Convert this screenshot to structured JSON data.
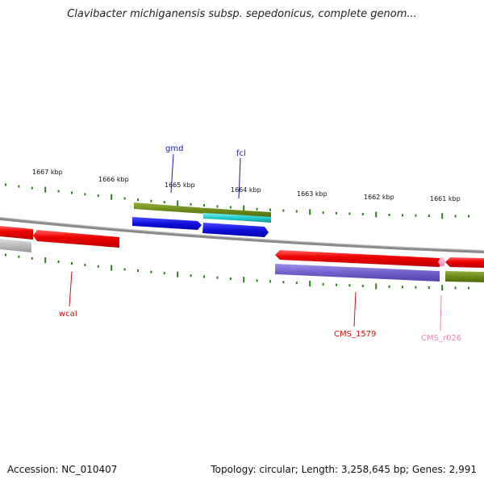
{
  "title": "Clavibacter michiganensis subsp. sepedonicus, complete genom...",
  "accession": "Accession: NC_010407",
  "topology": "Topology: circular; Length: 3,258,645 bp; Genes: 2,991",
  "colors": {
    "backbone": "#8a8a8a",
    "tick": "#2e7d1e",
    "tick_label": "#111111",
    "red_gene": "#ee1111",
    "olive_gene": "#6b8a1a",
    "cyan_gene": "#22cccc",
    "blue_gene": "#1111dd",
    "purple_gene": "#7060cc",
    "grey_gene": "#bbbbbb",
    "pink_gene": "#ee88bb",
    "label_blue": "#1a1aaa",
    "label_red": "#cc1111",
    "label_pink": "#ee88bb"
  },
  "scale": {
    "unit": "kbp",
    "labels": [
      "1667 kbp",
      "1666 kbp",
      "1665 kbp",
      "1664 kbp",
      "1663 kbp",
      "1662 kbp",
      "1661 kbp"
    ]
  },
  "genes": [
    {
      "name": "gmd",
      "color": "blue_gene",
      "strand": "+",
      "label_color": "label_blue"
    },
    {
      "name": "fcl",
      "color": "blue_gene",
      "strand": "+",
      "label_color": "label_blue"
    },
    {
      "name": "wcaI",
      "color": "red_gene",
      "strand": "-",
      "label_color": "label_red"
    },
    {
      "name": "CMS_1579",
      "color": "red_gene",
      "strand": "-",
      "label_color": "label_red"
    },
    {
      "name": "CMS_r026",
      "color": "pink_gene",
      "strand": "-",
      "label_color": "label_pink"
    }
  ]
}
